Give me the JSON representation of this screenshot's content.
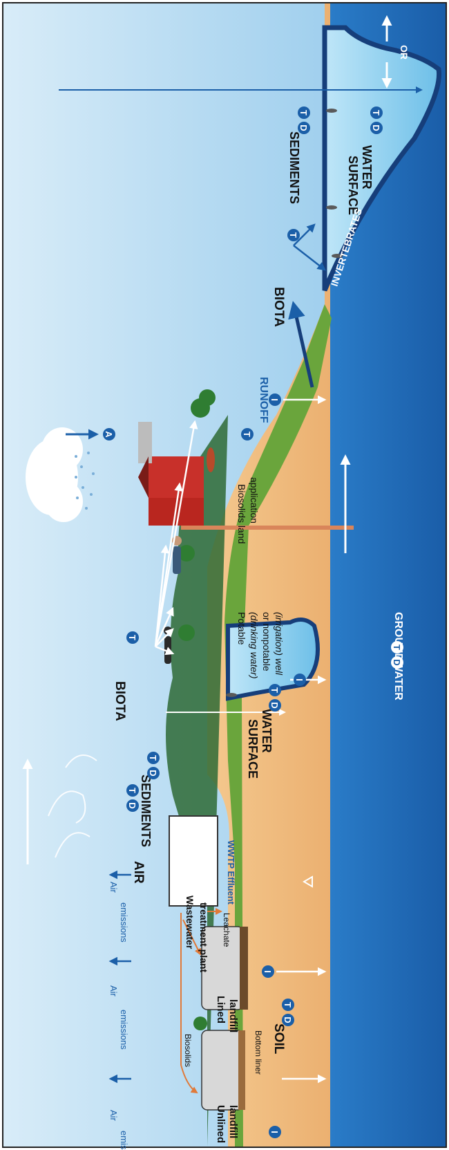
{
  "colors": {
    "sky_top": "#bfe0f4",
    "sky_bottom": "#7fbfe8",
    "soil": "#e9a968",
    "groundwater": "#1f6fc1",
    "water": "#8fd0f0",
    "badge": "#1b5fa8",
    "dark_blue": "#163e7a",
    "grass": "#6aa53c",
    "mountain": "#2e6a35"
  },
  "labels": {
    "air": "AIR",
    "soil": "SOIL",
    "biota_left": "BIOTA",
    "biota_right": "BIOTA",
    "sediments_left": "SEDIMENTS",
    "sediments_right": "SEDIMENTS",
    "surface_water_left": [
      "SURFACE",
      "WATER"
    ],
    "surface_water_right": [
      "SURFACE",
      "WATER"
    ],
    "groundwater": "GROUNDWATER",
    "runoff": "RUNOFF",
    "invertebrates": "INVERTEBRATES",
    "or": "OR",
    "air_emissions": [
      "Air",
      "emissions"
    ],
    "unlined_landfill": [
      "Unlined",
      "landfill"
    ],
    "lined_landfill": [
      "Lined",
      "landfill"
    ],
    "bottom_liner": "Bottom liner",
    "biosolids": "Biosolids",
    "leachate": "Leachate",
    "wwtp": [
      "Wastewater",
      "treatment plant"
    ],
    "wwtp_effluent": "WWTP Effluent",
    "well": [
      "Potable",
      "(drinking water)",
      "or nonpotable",
      "(irrigation) well"
    ],
    "biosolids_land": [
      "Biosolids land",
      "application"
    ]
  },
  "badges": {
    "D": "D",
    "T": "T",
    "I": "I",
    "A": "A"
  }
}
